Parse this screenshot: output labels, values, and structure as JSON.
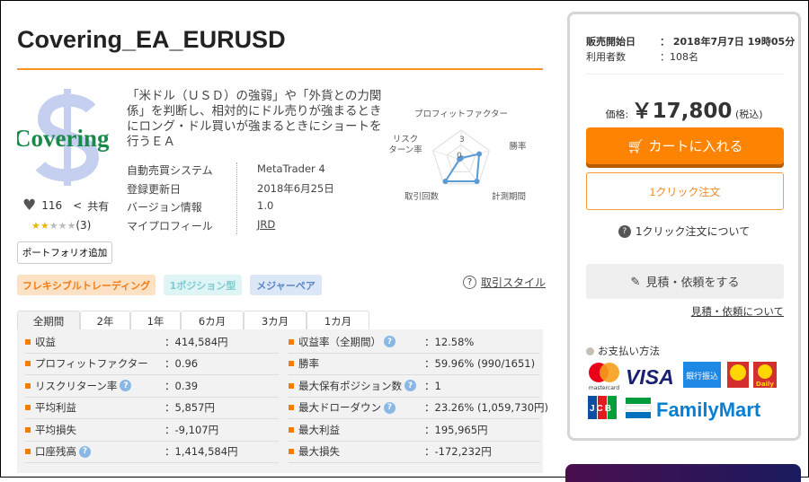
{
  "title": "Covering_EA_EURUSD",
  "logo_text": "Covering",
  "description": "「米ドル（ＵＳＤ）の強弱」や「外貨との力関係」を判断し、相対的にドル売りが強まるときにロング・ドル買いが強まるときにショートを行うＥＡ",
  "info": [
    {
      "label": "自動売買システム",
      "value": "MetaTrader 4"
    },
    {
      "label": "登録更新日",
      "value": "2018年6月25日"
    },
    {
      "label": "バージョン情報",
      "value": "1.0"
    },
    {
      "label": "マイプロフィール",
      "value": "JRD"
    }
  ],
  "likes": "116",
  "share": "共有",
  "rating": {
    "stars": 1.5,
    "max": 5,
    "count": "(3)"
  },
  "portfolio_button": "ポートフォリオ追加",
  "radar": {
    "axes": [
      "プロフィットファクター",
      "勝率",
      "計測期間",
      "取引回数",
      "リスク\nターン率"
    ],
    "ticks": [
      "3",
      "0"
    ],
    "values": [
      0.3,
      3.2,
      4.5,
      4.5,
      0.3
    ],
    "max": 5,
    "color": "#5b9bd5"
  },
  "tags": [
    {
      "label": "フレキシブルトレーディング",
      "bg": "#fde1c4",
      "fg": "#f07c12"
    },
    {
      "label": "1ポジション型",
      "bg": "#dff4f4",
      "fg": "#7fcbd0"
    },
    {
      "label": "メジャーペア",
      "bg": "#dbe6f7",
      "fg": "#5b86c8"
    }
  ],
  "trade_style": "取引スタイル",
  "tabs": [
    "全期間",
    "2年",
    "1年",
    "6カ月",
    "3カ月",
    "1カ月"
  ],
  "stats_left": [
    {
      "label": "収益",
      "value": "：414,584円"
    },
    {
      "label": "プロフィットファクター",
      "value": "：0.96"
    },
    {
      "label": "リスクリターン率",
      "value": "：0.39",
      "help": true
    },
    {
      "label": "平均利益",
      "value": "：5,857円"
    },
    {
      "label": "平均損失",
      "value": "：-9,107円"
    },
    {
      "label": "口座残高",
      "value": "：1,414,584円",
      "help": true
    }
  ],
  "stats_right": [
    {
      "label": "収益率（全期間）",
      "value": "：12.58%",
      "help": true
    },
    {
      "label": "勝率",
      "value": "：59.96% (990/1651)"
    },
    {
      "label": "最大保有ポジション数",
      "value": "：1",
      "help": true
    },
    {
      "label": "最大ドローダウン",
      "value": "：23.26% (1,059,730円)",
      "help": true
    },
    {
      "label": "最大利益",
      "value": "：195,965円"
    },
    {
      "label": "最大損失",
      "value": "：-172,232円"
    }
  ],
  "panel": {
    "sale_label": "販売開始日",
    "sale_value": "： 2018年7月7日 19時05分",
    "users_label": "利用者数",
    "users_value": "：108名",
    "price_label": "価格:",
    "price": "￥17,800",
    "tax": "(税込)",
    "cart": "カートに入れる",
    "oneclick": "1クリック注文",
    "about_oneclick": "1クリック注文について",
    "quote": "見積・依頼をする",
    "about_quote": "見積・依頼について",
    "payment": "お支払い方法",
    "payment_logos": [
      "mastercard",
      "VISA",
      "銀行振込",
      "Daily",
      "JCB",
      "FamilyMart"
    ]
  }
}
